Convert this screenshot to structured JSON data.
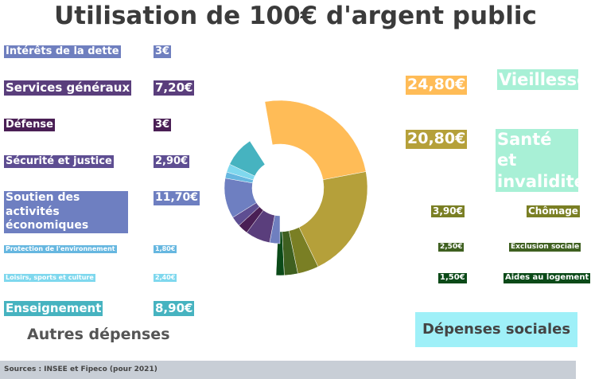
{
  "title": "Utilisation de 100€ d'argent public",
  "source": "Sources : INSEE et Fipeco (pour 2021)",
  "group_labels": {
    "other": "Autres dépenses",
    "social": "Dépenses sociales"
  },
  "chart_data": {
    "type": "donut",
    "title": "Utilisation de 100€ d'argent public",
    "unit": "€",
    "groups": [
      {
        "name": "Dépenses sociales",
        "slices": [
          {
            "label": "Vieillesse",
            "value": 24.8,
            "value_label": "24,80€",
            "color": "#ffbc57"
          },
          {
            "label": "Santé et invalidité",
            "value": 20.8,
            "value_label": "20,80€",
            "color": "#b5a03a"
          },
          {
            "label": "Chômage",
            "value": 3.9,
            "value_label": "3,90€",
            "color": "#7a7f24"
          },
          {
            "label": "Exclusion sociale",
            "value": 2.5,
            "value_label": "2,50€",
            "color": "#3f6020"
          },
          {
            "label": "Aides au logement",
            "value": 1.5,
            "value_label": "1,50€",
            "color": "#0b4a18"
          }
        ]
      },
      {
        "name": "Autres dépenses",
        "slices": [
          {
            "label": "Intérêts de la dette",
            "value": 3.0,
            "value_label": "3€",
            "color": "#6f7fbf"
          },
          {
            "label": "Services généraux",
            "value": 7.2,
            "value_label": "7,20€",
            "color": "#5a3e7c"
          },
          {
            "label": "Défense",
            "value": 3.0,
            "value_label": "3€",
            "color": "#4a1f55"
          },
          {
            "label": "Sécurité et justice",
            "value": 2.9,
            "value_label": "2,90€",
            "color": "#5e4e92"
          },
          {
            "label": "Soutien des activités économiques",
            "value": 11.7,
            "value_label": "11,70€",
            "color": "#6e7fc1"
          },
          {
            "label": "Protection de l'environnement",
            "value": 1.8,
            "value_label": "1,80€",
            "color": "#66b7e0"
          },
          {
            "label": "Loisirs, sports et culture",
            "value": 2.4,
            "value_label": "2,40€",
            "color": "#7fd8ee"
          },
          {
            "label": "Enseignement",
            "value": 8.9,
            "value_label": "8,90€",
            "color": "#46b3c0"
          }
        ]
      }
    ]
  }
}
